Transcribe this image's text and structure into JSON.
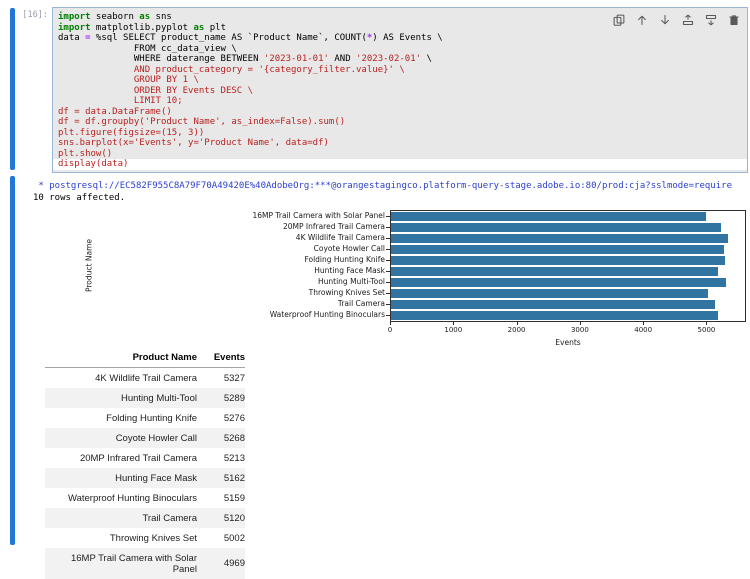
{
  "cell": {
    "prompt": "[16]:",
    "toolbar": {
      "icons": [
        "duplicate",
        "move-up",
        "move-down",
        "insert-above",
        "insert-below",
        "delete"
      ]
    },
    "code_lines": [
      {
        "segments": [
          {
            "s": "kw",
            "t": "import"
          },
          {
            "s": "pl",
            "t": " seaborn "
          },
          {
            "s": "kw",
            "t": "as"
          },
          {
            "s": "pl",
            "t": " sns"
          }
        ]
      },
      {
        "segments": [
          {
            "s": "kw",
            "t": "import"
          },
          {
            "s": "pl",
            "t": " matplotlib.pyplot "
          },
          {
            "s": "kw",
            "t": "as"
          },
          {
            "s": "pl",
            "t": " plt"
          }
        ]
      },
      {
        "segments": [
          {
            "s": "pl",
            "t": "data "
          },
          {
            "s": "op",
            "t": "="
          },
          {
            "s": "pl",
            "t": " %sql SELECT product_name AS `Product Name`, COUNT("
          },
          {
            "s": "op",
            "t": "*"
          },
          {
            "s": "pl",
            "t": ") AS Events \\"
          }
        ]
      },
      {
        "segments": [
          {
            "s": "pl",
            "t": "              FROM cc_data_view \\"
          }
        ]
      },
      {
        "segments": [
          {
            "s": "pl",
            "t": "              WHERE daterange BETWEEN "
          },
          {
            "s": "str",
            "t": "'2023-01-01'"
          },
          {
            "s": "pl",
            "t": " AND "
          },
          {
            "s": "str",
            "t": "'2023-02-01'"
          },
          {
            "s": "pl",
            "t": " \\"
          }
        ]
      },
      {
        "segments": [
          {
            "s": "str",
            "t": "              AND product_category = '{category_filter.value}' \\"
          }
        ]
      },
      {
        "segments": [
          {
            "s": "str",
            "t": "              GROUP BY 1 \\"
          }
        ]
      },
      {
        "segments": [
          {
            "s": "str",
            "t": "              ORDER BY Events DESC \\"
          }
        ]
      },
      {
        "segments": [
          {
            "s": "str",
            "t": "              LIMIT 10;"
          }
        ]
      },
      {
        "segments": [
          {
            "s": "str",
            "t": "df = data.DataFrame()"
          }
        ]
      },
      {
        "segments": [
          {
            "s": "str",
            "t": "df = df.groupby('Product Name', as_index=False).sum()"
          }
        ]
      },
      {
        "segments": [
          {
            "s": "str",
            "t": "plt.figure(figsize=(15, 3))"
          }
        ]
      },
      {
        "segments": [
          {
            "s": "str",
            "t": "sns.barplot(x='Events', y='Product Name', data=df)"
          }
        ]
      },
      {
        "segments": [
          {
            "s": "str",
            "t": "plt.show()"
          }
        ]
      },
      {
        "segments": [
          {
            "s": "str",
            "t": "display(data)"
          }
        ],
        "active": true
      }
    ]
  },
  "output": {
    "connection_line": " * postgresql://EC582F955C8A79F70A49420E%40AdobeOrg:***@orangestagingco.platform-query-stage.adobe.io:80/prod:cja?sslmode=require",
    "rows_affected": "10 rows affected."
  },
  "chart_data": {
    "type": "bar",
    "orientation": "horizontal",
    "categories": [
      "16MP Trail Camera with Solar Panel",
      "20MP Infrared Trail Camera",
      "4K Wildlife Trail Camera",
      "Coyote Howler Call",
      "Folding Hunting Knife",
      "Hunting Face Mask",
      "Hunting Multi-Tool",
      "Throwing Knives Set",
      "Trail Camera",
      "Waterproof Hunting Binoculars"
    ],
    "values": [
      4969,
      5213,
      5327,
      5268,
      5276,
      5162,
      5289,
      5002,
      5120,
      5159
    ],
    "title": "",
    "xlabel": "Events",
    "ylabel": "Product Name",
    "xlim": [
      0,
      5593
    ],
    "xticks": [
      0,
      1000,
      2000,
      3000,
      4000,
      5000
    ],
    "grid": false,
    "legend": false,
    "bar_color": "#3274a1"
  },
  "table": {
    "headers": [
      "Product Name",
      "Events"
    ],
    "rows": [
      [
        "4K Wildlife Trail Camera",
        "5327"
      ],
      [
        "Hunting Multi-Tool",
        "5289"
      ],
      [
        "Folding Hunting Knife",
        "5276"
      ],
      [
        "Coyote Howler Call",
        "5268"
      ],
      [
        "20MP Infrared Trail Camera",
        "5213"
      ],
      [
        "Hunting Face Mask",
        "5162"
      ],
      [
        "Waterproof Hunting Binoculars",
        "5159"
      ],
      [
        "Trail Camera",
        "5120"
      ],
      [
        "Throwing Knives Set",
        "5002"
      ],
      [
        "16MP Trail Camera with Solar Panel",
        "4969"
      ]
    ]
  },
  "colors": {
    "bar": "#3274a1",
    "collapser_blue": "#2176d9",
    "editor_background": "#e8e8e8",
    "editor_border": "#9bb6d6",
    "keyword_green": "#008000",
    "operator_purple": "#aa22ff",
    "string_red": "#ba2121",
    "connection_blue": "#2a3fd0",
    "row_stripe": "#f2f2f2"
  }
}
